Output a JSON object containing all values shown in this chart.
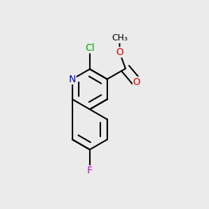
{
  "bg_color": "#ebebeb",
  "bond_color": "#000000",
  "bond_width": 1.5,
  "atom_colors": {
    "N": "#0000cc",
    "O": "#dd0000",
    "F": "#cc00cc",
    "Cl": "#00aa00",
    "C": "#000000"
  },
  "font_size_atom": 10.5
}
